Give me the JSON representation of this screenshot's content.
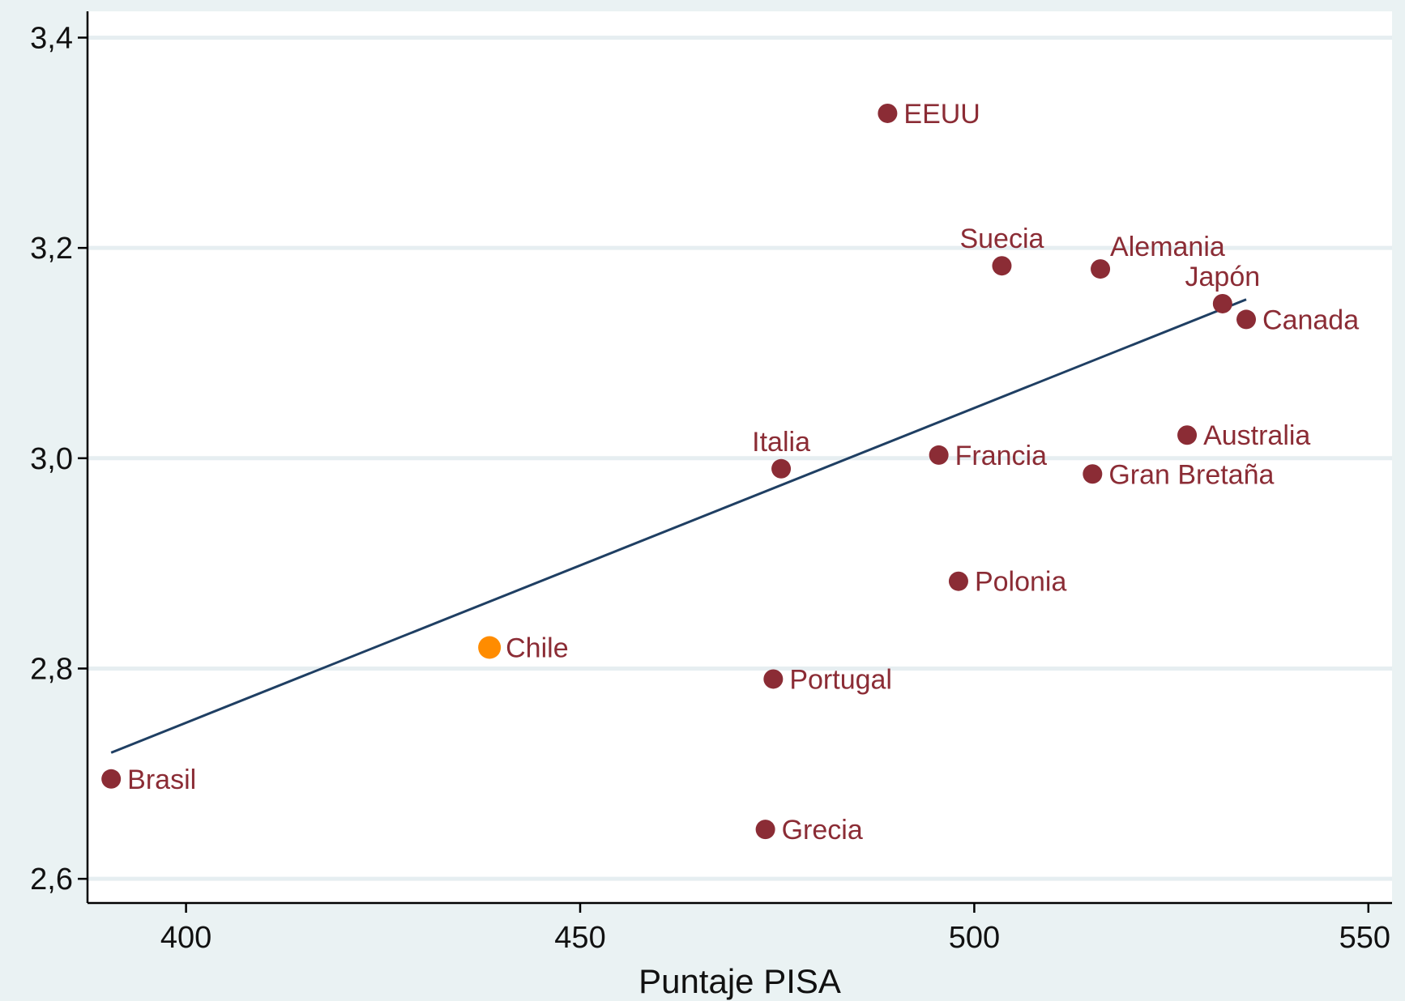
{
  "chart_data": {
    "type": "scatter",
    "title": "",
    "xlabel": "Puntaje PISA",
    "ylabel": "",
    "xlim": [
      387.5,
      553
    ],
    "ylim": [
      2.577,
      3.425
    ],
    "x_ticks": [
      {
        "value": 400,
        "label": "400"
      },
      {
        "value": 450,
        "label": "450"
      },
      {
        "value": 500,
        "label": "500"
      },
      {
        "value": 550,
        "label": "550"
      }
    ],
    "y_ticks": [
      {
        "value": 2.6,
        "label": "2,6"
      },
      {
        "value": 2.8,
        "label": "2,8"
      },
      {
        "value": 3.0,
        "label": "3,0"
      },
      {
        "value": 3.2,
        "label": "3,2"
      },
      {
        "value": 3.4,
        "label": "3,4"
      }
    ],
    "grid": "horizontal",
    "colors": {
      "background": "#eaf2f3",
      "plot_background": "#ffffff",
      "gridline": "#e6eef1",
      "point": "#8b2c35",
      "highlight": "#ff8c00",
      "label": "#8b2c35",
      "fit_line": "#1f3f63",
      "axis": "#000000"
    },
    "points": [
      {
        "label": "Brasil",
        "x": 390.5,
        "y": 2.695,
        "label_position": "right"
      },
      {
        "label": "Chile",
        "x": 438.5,
        "y": 2.82,
        "label_position": "right",
        "highlight": true
      },
      {
        "label": "Grecia",
        "x": 473.5,
        "y": 2.647,
        "label_position": "right"
      },
      {
        "label": "Portugal",
        "x": 474.5,
        "y": 2.79,
        "label_position": "right"
      },
      {
        "label": "Italia",
        "x": 475.5,
        "y": 2.99,
        "label_position": "above"
      },
      {
        "label": "EEUU",
        "x": 489,
        "y": 3.328,
        "label_position": "right"
      },
      {
        "label": "Francia",
        "x": 495.5,
        "y": 3.003,
        "label_position": "right"
      },
      {
        "label": "Polonia",
        "x": 498,
        "y": 2.883,
        "label_position": "right"
      },
      {
        "label": "Suecia",
        "x": 503.5,
        "y": 3.183,
        "label_position": "above"
      },
      {
        "label": "Gran Bretaña",
        "x": 515,
        "y": 2.985,
        "label_position": "right"
      },
      {
        "label": "Alemania",
        "x": 516,
        "y": 3.18,
        "label_position": "above-right"
      },
      {
        "label": "Australia",
        "x": 527,
        "y": 3.022,
        "label_position": "right"
      },
      {
        "label": "Japón",
        "x": 531.5,
        "y": 3.147,
        "label_position": "above"
      },
      {
        "label": "Canada",
        "x": 534.5,
        "y": 3.132,
        "label_position": "right"
      }
    ],
    "fit_line": {
      "x": [
        390.5,
        534.5
      ],
      "y": [
        2.72,
        3.151
      ]
    }
  }
}
